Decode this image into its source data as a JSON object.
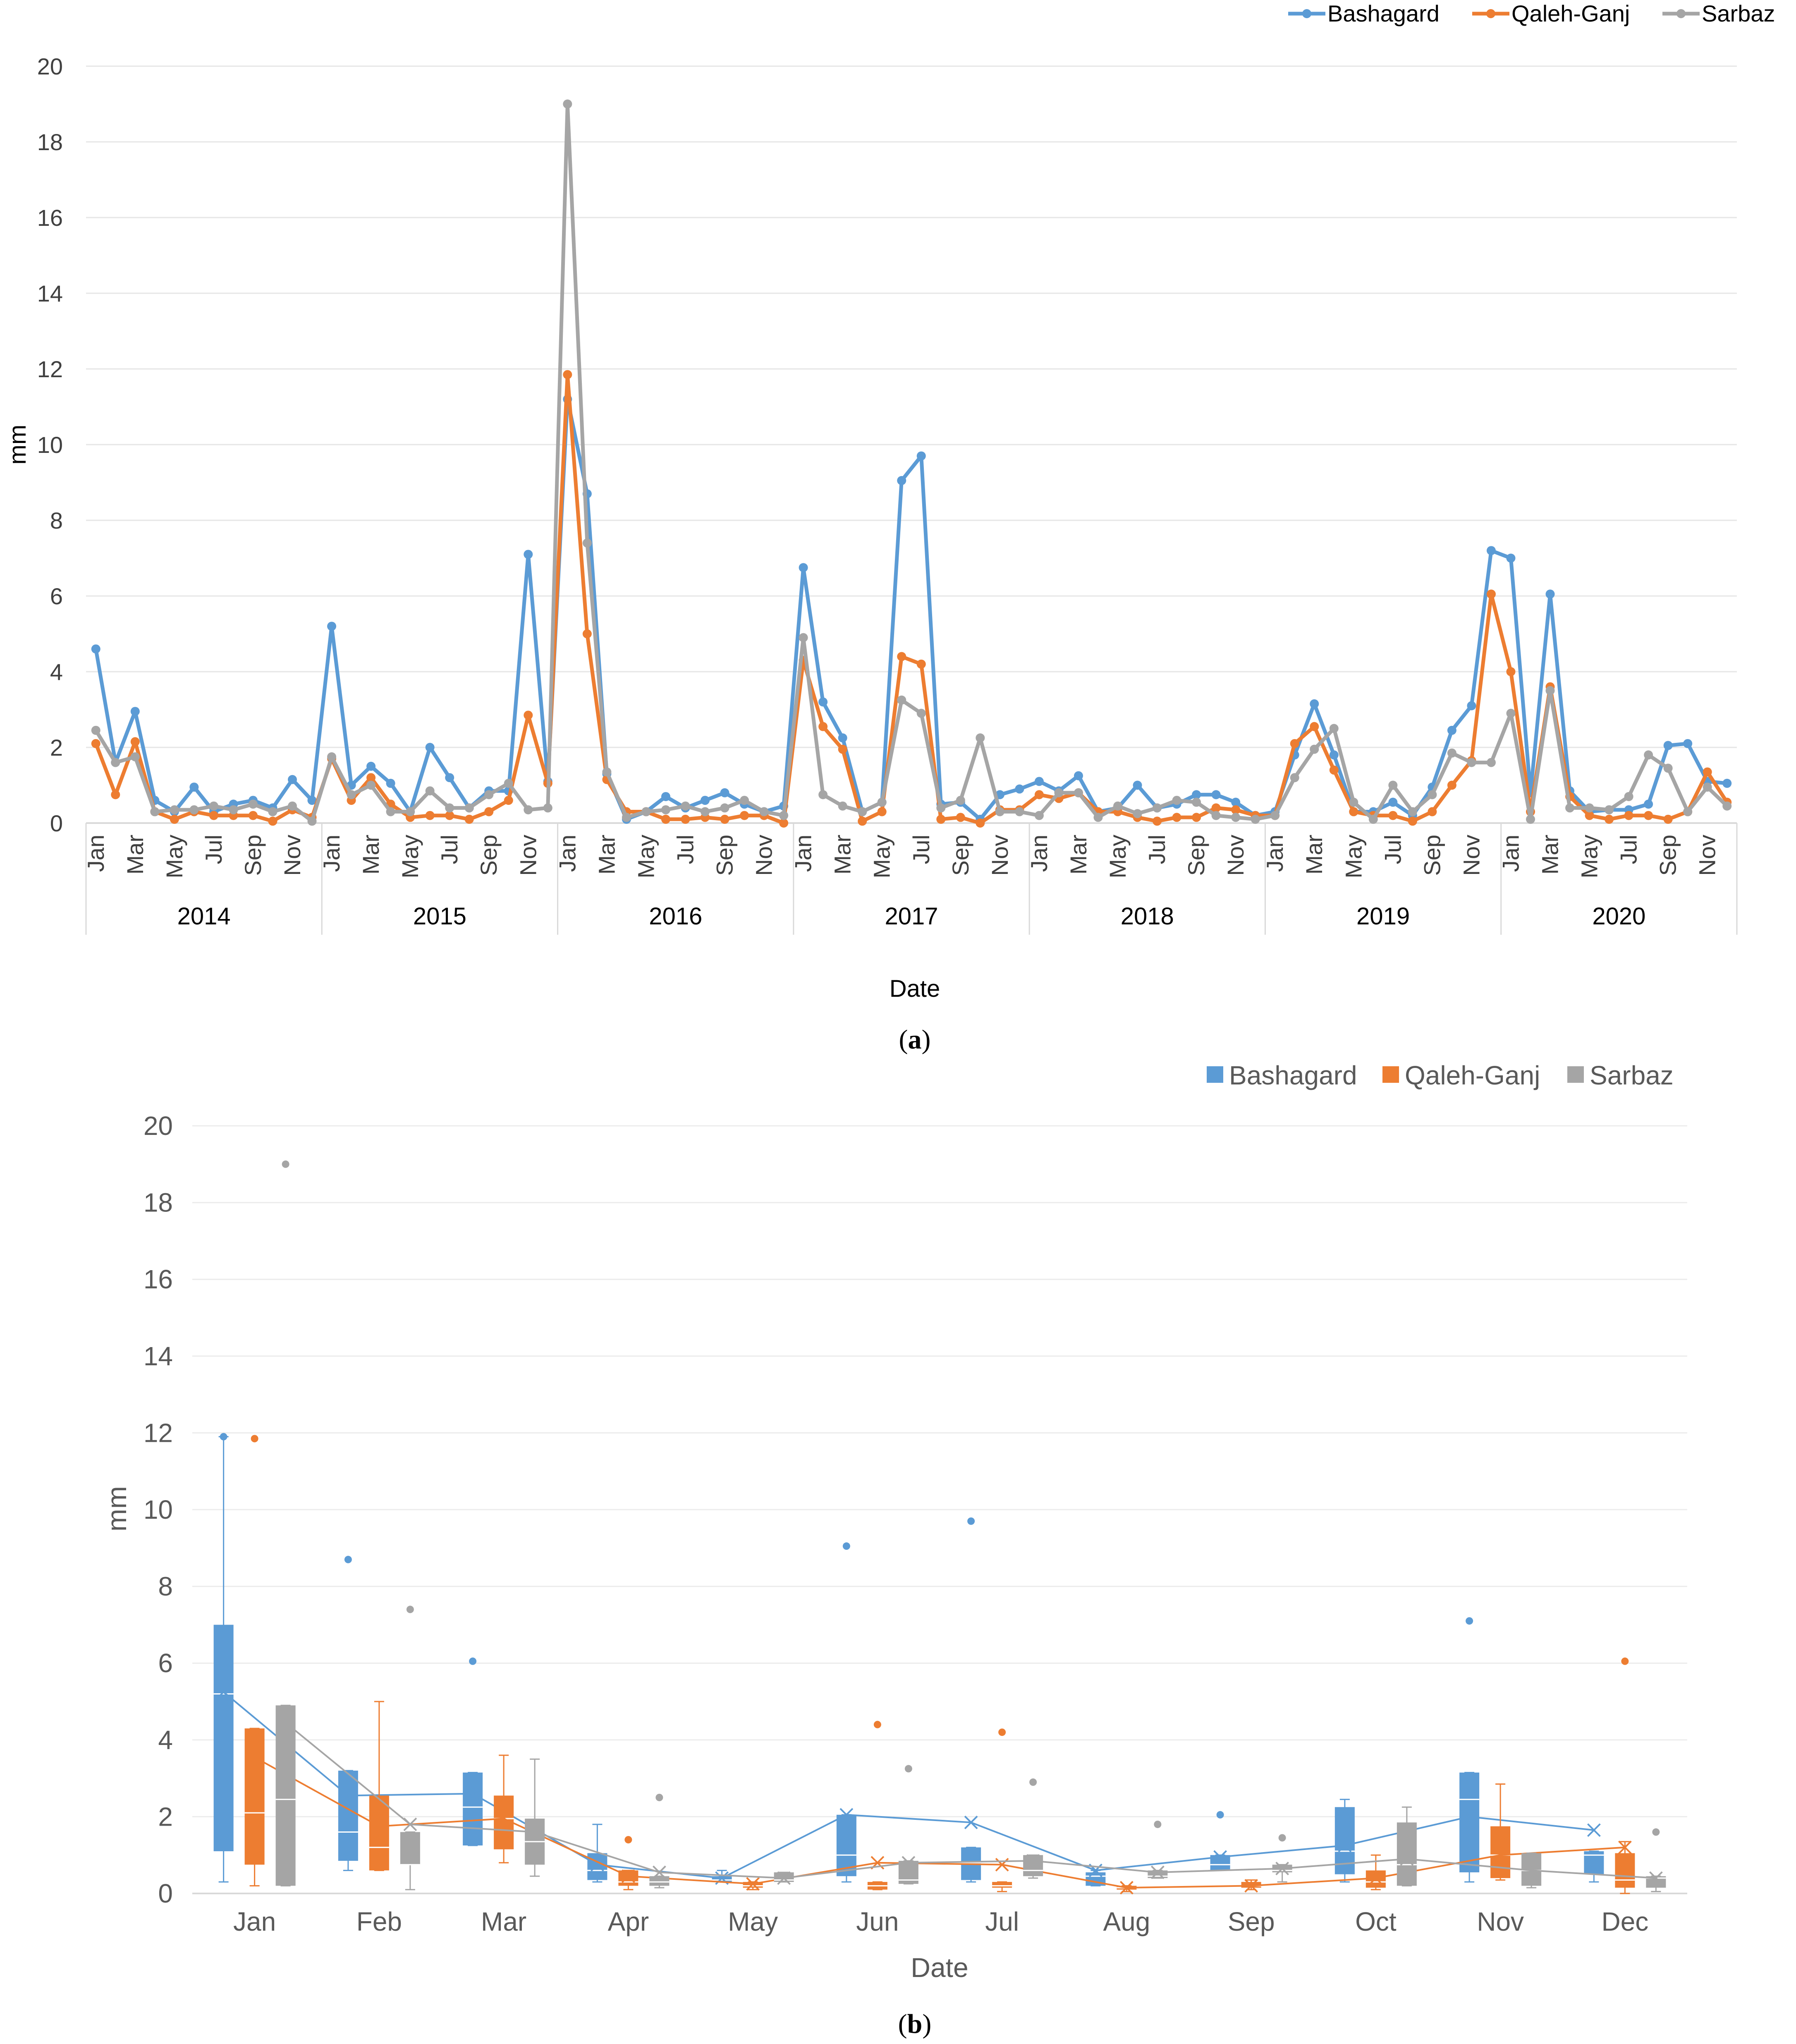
{
  "colors": {
    "Bashagard": "#5B9BD5",
    "Qaleh-Ganj": "#ED7D31",
    "Sarbaz": "#A5A5A5"
  },
  "chart_data": [
    {
      "type": "line",
      "caption_label": "a",
      "ylabel": "mm",
      "xlabel": "Date",
      "ylim": [
        0,
        20
      ],
      "y_ticks": [
        "0",
        "2",
        "4",
        "6",
        "8",
        "10",
        "12",
        "14",
        "16",
        "18",
        "20"
      ],
      "years": [
        "2014",
        "2015",
        "2016",
        "2017",
        "2018",
        "2019",
        "2020"
      ],
      "month_tick_labels": [
        "Jan",
        "Mar",
        "May",
        "Jul",
        "Sep",
        "Nov"
      ],
      "legend": [
        "Bashagard",
        "Qaleh-Ganj",
        "Sarbaz"
      ],
      "legend_position": "top-right",
      "series": [
        {
          "name": "Bashagard",
          "values": [
            4.6,
            1.6,
            2.95,
            0.6,
            0.3,
            0.95,
            0.3,
            0.5,
            0.6,
            0.4,
            1.15,
            0.6,
            5.2,
            1.0,
            1.5,
            1.05,
            0.3,
            2.0,
            1.2,
            0.4,
            0.85,
            0.85,
            7.1,
            1.1,
            11.2,
            8.7,
            1.3,
            0.1,
            0.3,
            0.7,
            0.4,
            0.6,
            0.8,
            0.5,
            0.3,
            0.45,
            6.75,
            3.2,
            2.25,
            0.3,
            0.55,
            9.05,
            9.7,
            0.5,
            0.55,
            0.1,
            0.75,
            0.9,
            1.1,
            0.85,
            1.25,
            0.3,
            0.4,
            1.0,
            0.4,
            0.5,
            0.75,
            0.75,
            0.55,
            0.2,
            0.3,
            1.8,
            3.15,
            1.8,
            0.3,
            0.3,
            0.55,
            0.2,
            0.95,
            2.45,
            3.1,
            7.2,
            7.0,
            0.8,
            6.05,
            0.85,
            0.3,
            0.35,
            0.35,
            0.5,
            2.05,
            2.1,
            1.1,
            1.05
          ]
        },
        {
          "name": "Qaleh-Ganj",
          "values": [
            2.1,
            0.75,
            2.15,
            0.3,
            0.1,
            0.3,
            0.2,
            0.2,
            0.2,
            0.05,
            0.35,
            0.15,
            1.7,
            0.6,
            1.2,
            0.5,
            0.15,
            0.2,
            0.2,
            0.1,
            0.3,
            0.6,
            2.85,
            1.05,
            11.85,
            5.0,
            1.15,
            0.3,
            0.3,
            0.1,
            0.1,
            0.15,
            0.1,
            0.2,
            0.2,
            0.0,
            4.3,
            2.55,
            1.95,
            0.05,
            0.3,
            4.4,
            4.2,
            0.1,
            0.15,
            0.0,
            0.35,
            0.35,
            0.75,
            0.65,
            0.8,
            0.3,
            0.3,
            0.15,
            0.05,
            0.15,
            0.15,
            0.4,
            0.35,
            0.2,
            0.2,
            2.1,
            2.55,
            1.4,
            0.3,
            0.2,
            0.2,
            0.05,
            0.3,
            1.0,
            1.65,
            6.05,
            4.0,
            0.3,
            3.6,
            0.7,
            0.2,
            0.1,
            0.2,
            0.2,
            0.1,
            0.3,
            1.35,
            0.55
          ]
        },
        {
          "name": "Sarbaz",
          "values": [
            2.45,
            1.6,
            1.75,
            0.3,
            0.35,
            0.35,
            0.45,
            0.35,
            0.5,
            0.3,
            0.45,
            0.05,
            1.75,
            0.75,
            1.0,
            0.3,
            0.3,
            0.85,
            0.4,
            0.4,
            0.75,
            1.05,
            0.35,
            0.4,
            19.0,
            7.4,
            1.35,
            0.15,
            0.3,
            0.35,
            0.45,
            0.3,
            0.4,
            0.6,
            0.3,
            0.2,
            4.9,
            0.75,
            0.45,
            0.3,
            0.55,
            3.25,
            2.9,
            0.4,
            0.6,
            2.25,
            0.3,
            0.3,
            0.2,
            0.8,
            0.8,
            0.15,
            0.45,
            0.25,
            0.4,
            0.6,
            0.55,
            0.2,
            0.15,
            0.1,
            0.2,
            1.2,
            1.95,
            2.5,
            0.55,
            0.1,
            1.0,
            0.3,
            0.75,
            1.85,
            1.6,
            1.6,
            2.9,
            0.1,
            3.5,
            0.4,
            0.4,
            0.35,
            0.7,
            1.8,
            1.45,
            0.3,
            0.95,
            0.45
          ]
        }
      ]
    },
    {
      "type": "boxplot",
      "caption_label": "b",
      "ylabel": "mm",
      "xlabel": "Date",
      "ylim": [
        0,
        20
      ],
      "y_ticks": [
        "0",
        "2",
        "4",
        "6",
        "8",
        "10",
        "12",
        "14",
        "16",
        "18",
        "20"
      ],
      "categories": [
        "Jan",
        "Feb",
        "Mar",
        "Apr",
        "May",
        "Jun",
        "Jul",
        "Aug",
        "Sep",
        "Oct",
        "Nov",
        "Dec"
      ],
      "legend": [
        "Bashagard",
        "Qaleh-Ganj",
        "Sarbaz"
      ],
      "legend_position": "top-right",
      "series": [
        {
          "name": "Bashagard",
          "min": [
            0.3,
            0.6,
            1.25,
            0.3,
            0.3,
            0.3,
            0.3,
            0.2,
            0.6,
            0.3,
            0.3,
            0.3
          ],
          "q1": [
            1.1,
            0.85,
            1.25,
            0.35,
            0.3,
            0.45,
            0.35,
            0.2,
            0.6,
            0.5,
            0.55,
            0.5
          ],
          "median": [
            5.2,
            1.6,
            2.25,
            0.6,
            0.35,
            1.0,
            0.8,
            0.45,
            0.75,
            1.1,
            2.45,
            1.0
          ],
          "q3": [
            7.0,
            3.2,
            3.15,
            1.05,
            0.45,
            2.05,
            1.2,
            0.55,
            1.0,
            2.25,
            3.15,
            1.1
          ],
          "max": [
            11.9,
            3.2,
            3.15,
            1.8,
            0.6,
            2.05,
            1.2,
            0.6,
            1.0,
            2.45,
            3.15,
            1.1
          ],
          "mean": [
            5.25,
            2.55,
            2.6,
            0.75,
            0.4,
            2.05,
            1.85,
            0.6,
            0.95,
            1.25,
            2.0,
            1.65
          ],
          "outliers": [
            [
              11.9
            ],
            [
              8.7
            ],
            [
              6.05
            ],
            [],
            [],
            [
              9.05
            ],
            [
              9.7
            ],
            [],
            [
              2.05
            ],
            [],
            [
              7.1
            ],
            []
          ]
        },
        {
          "name": "Qaleh-Ganj",
          "min": [
            0.2,
            0.6,
            0.8,
            0.1,
            0.1,
            0.1,
            0.05,
            0.05,
            0.1,
            0.1,
            0.35,
            0.0
          ],
          "q1": [
            0.75,
            0.6,
            1.15,
            0.2,
            0.15,
            0.1,
            0.15,
            0.1,
            0.15,
            0.15,
            0.4,
            0.15
          ],
          "median": [
            2.1,
            1.2,
            1.95,
            0.3,
            0.2,
            0.2,
            0.2,
            0.15,
            0.2,
            0.3,
            1.0,
            0.35
          ],
          "q3": [
            4.3,
            2.55,
            2.55,
            0.6,
            0.3,
            0.3,
            0.3,
            0.2,
            0.3,
            0.6,
            1.75,
            1.05
          ],
          "max": [
            4.3,
            5.0,
            3.6,
            0.6,
            0.3,
            0.3,
            0.3,
            0.2,
            0.35,
            1.0,
            2.85,
            1.35
          ],
          "mean": [
            3.55,
            1.75,
            1.95,
            0.45,
            0.25,
            0.8,
            0.75,
            0.15,
            0.2,
            0.4,
            1.0,
            1.2
          ],
          "outliers": [
            [
              11.85
            ],
            [],
            [],
            [
              1.4
            ],
            [],
            [
              4.4
            ],
            [
              4.2
            ],
            [],
            [],
            [],
            [],
            [
              6.05
            ]
          ]
        },
        {
          "name": "Sarbaz",
          "min": [
            0.2,
            0.1,
            0.45,
            0.15,
            0.3,
            0.25,
            0.4,
            0.4,
            0.3,
            0.2,
            0.15,
            0.05
          ],
          "q1": [
            0.2,
            0.75,
            0.75,
            0.2,
            0.3,
            0.25,
            0.45,
            0.4,
            0.55,
            0.2,
            0.2,
            0.15
          ],
          "median": [
            2.45,
            0.75,
            1.35,
            0.3,
            0.35,
            0.35,
            0.6,
            0.45,
            0.6,
            0.75,
            0.6,
            0.4
          ],
          "q3": [
            4.9,
            1.6,
            1.95,
            0.45,
            0.55,
            0.85,
            1.0,
            0.6,
            0.75,
            1.85,
            1.05,
            0.45
          ],
          "max": [
            4.9,
            1.6,
            3.5,
            0.45,
            0.55,
            0.85,
            1.0,
            0.6,
            0.75,
            2.25,
            1.05,
            0.45
          ],
          "mean": [
            4.45,
            1.8,
            1.6,
            0.55,
            0.4,
            0.8,
            0.85,
            0.55,
            0.65,
            0.9,
            0.6,
            0.4
          ],
          "outliers": [
            [
              19.0
            ],
            [
              7.4
            ],
            [],
            [
              2.5
            ],
            [],
            [
              3.25
            ],
            [
              2.9
            ],
            [
              1.8
            ],
            [
              1.45
            ],
            [],
            [],
            [
              1.6
            ]
          ]
        }
      ]
    }
  ]
}
